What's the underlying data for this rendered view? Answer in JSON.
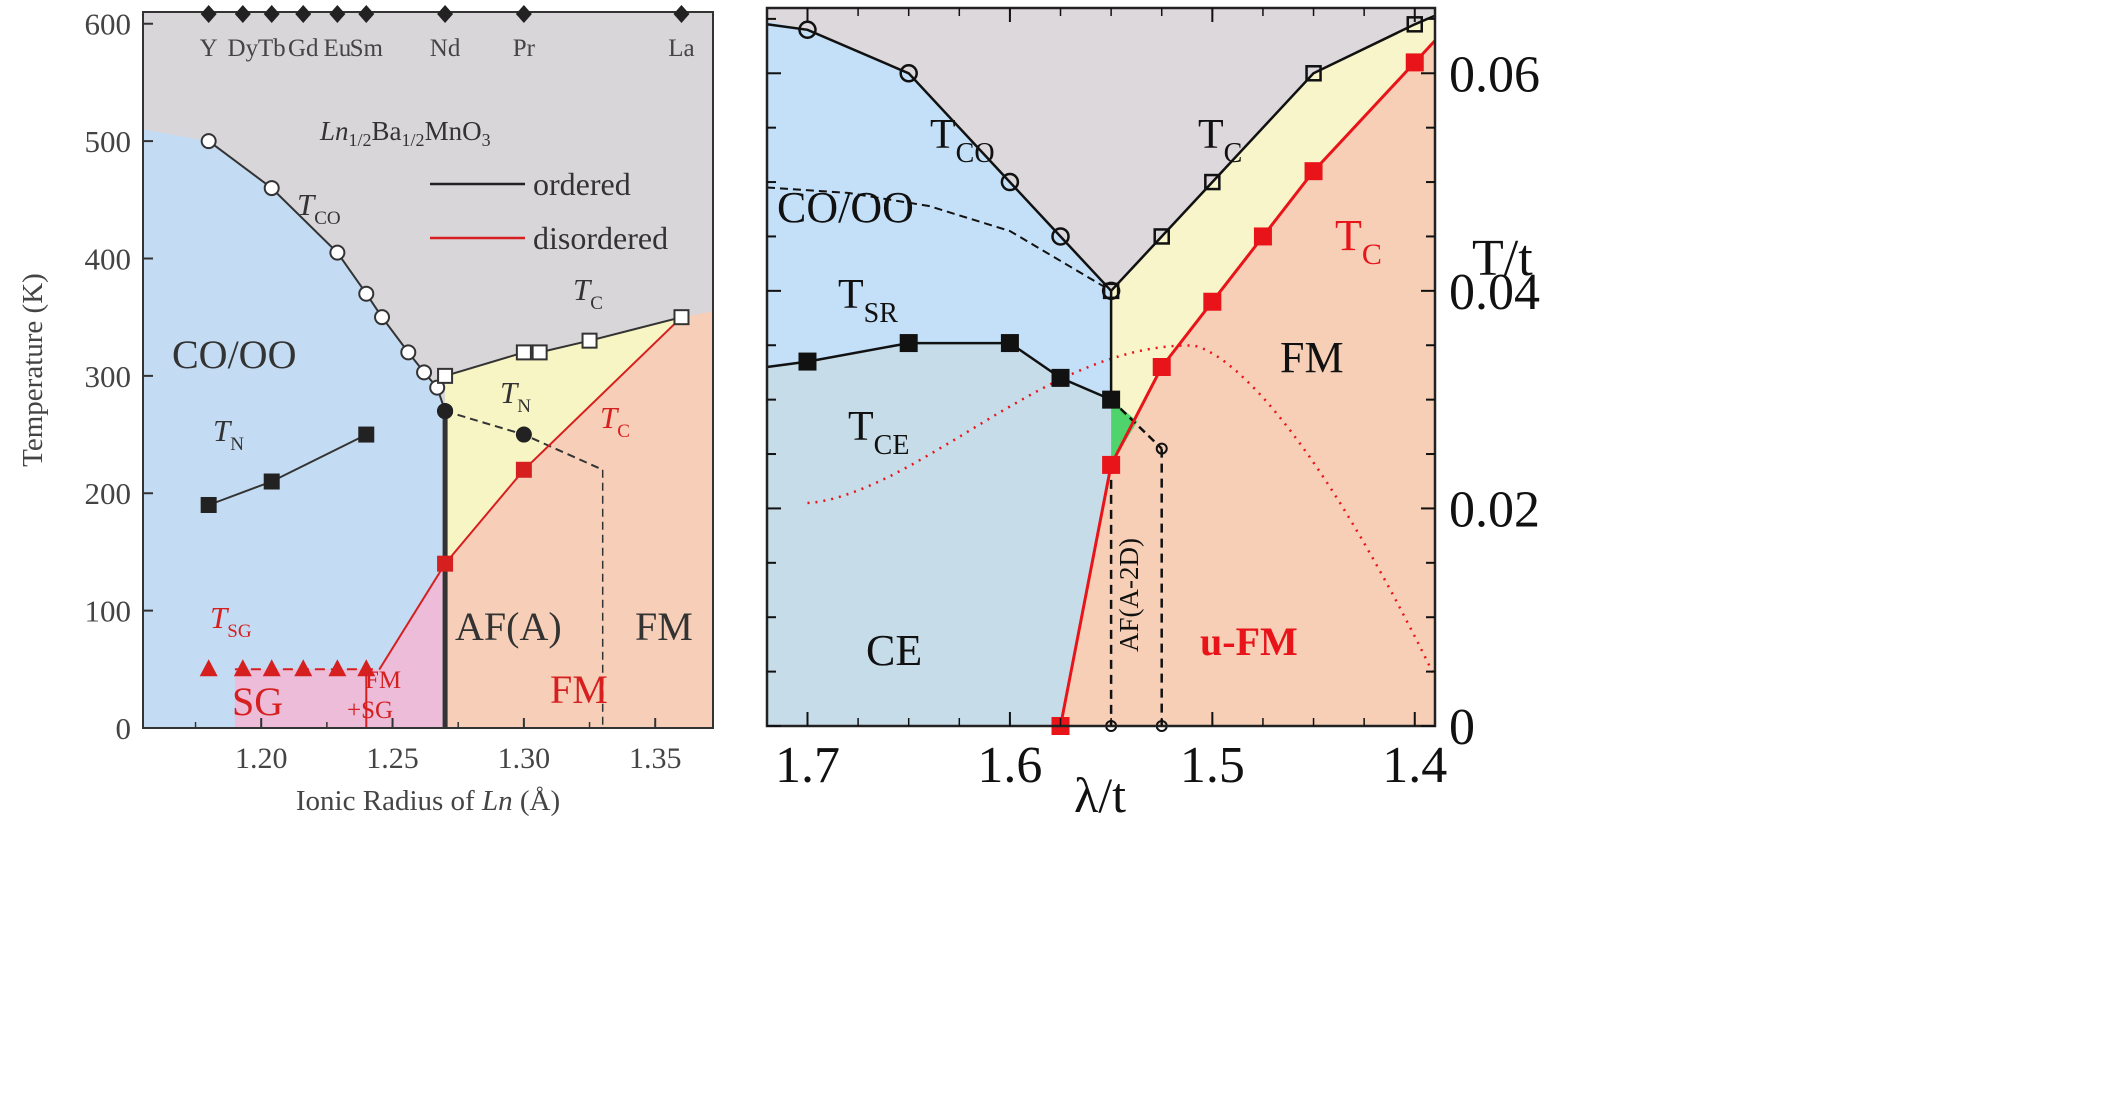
{
  "chart_data": [
    {
      "type": "phase-diagram",
      "title": "",
      "compound": {
        "base": "Ln",
        "sub1": "1/2",
        "mid": "Ba",
        "sub2": "1/2",
        "tail": "MnO",
        "sub3": "3"
      },
      "xlabel": {
        "text": "Ionic Radius of ",
        "italic": "Ln",
        "unit": " (Å)"
      },
      "ylabel": "Temperature (K)",
      "xlim": [
        1.155,
        1.372
      ],
      "ylim": [
        0,
        610
      ],
      "xticks": [
        1.2,
        1.25,
        1.3,
        1.35
      ],
      "xtick_labels": [
        "1.20",
        "1.25",
        "1.30",
        "1.35"
      ],
      "yticks": [
        0,
        100,
        200,
        300,
        400,
        500,
        600
      ],
      "ytick_labels": [
        "0",
        "100",
        "200",
        "300",
        "400",
        "500",
        "600"
      ],
      "elements": [
        {
          "symbol": "Y",
          "r": 1.18
        },
        {
          "symbol": "Dy",
          "r": 1.193
        },
        {
          "symbol": "Tb",
          "r": 1.204
        },
        {
          "symbol": "Gd",
          "r": 1.216
        },
        {
          "symbol": "Eu",
          "r": 1.229
        },
        {
          "symbol": "Sm",
          "r": 1.24
        },
        {
          "symbol": "Nd",
          "r": 1.27
        },
        {
          "symbol": "Pr",
          "r": 1.3
        },
        {
          "symbol": "La",
          "r": 1.36
        }
      ],
      "legend": {
        "position": "upper-right",
        "entries": [
          {
            "label": "ordered",
            "color": "#222222"
          },
          {
            "label": "disordered",
            "color": "#d62020"
          }
        ]
      },
      "series": [
        {
          "name": "T_CO",
          "marker": "open-circle",
          "points": [
            [
              1.18,
              500
            ],
            [
              1.204,
              460
            ],
            [
              1.229,
              405
            ],
            [
              1.24,
              370
            ],
            [
              1.246,
              350
            ],
            [
              1.256,
              320
            ],
            [
              1.262,
              303
            ],
            [
              1.267,
              290
            ],
            [
              1.27,
              270
            ]
          ]
        },
        {
          "name": "T_C (ordered)",
          "marker": "open-square",
          "points": [
            [
              1.27,
              300
            ],
            [
              1.3,
              320
            ],
            [
              1.306,
              320
            ],
            [
              1.325,
              330
            ],
            [
              1.36,
              350
            ]
          ]
        },
        {
          "name": "T_N (AF(A))",
          "marker": "filled-circle",
          "points": [
            [
              1.27,
              270
            ],
            [
              1.3,
              250
            ]
          ]
        },
        {
          "name": "T_N (low r)",
          "marker": "filled-square",
          "points": [
            [
              1.18,
              190
            ],
            [
              1.204,
              210
            ],
            [
              1.24,
              250
            ]
          ]
        },
        {
          "name": "T_C (disordered)",
          "marker": "red-square",
          "points": [
            [
              1.27,
              140
            ],
            [
              1.3,
              220
            ]
          ]
        },
        {
          "name": "T_SG",
          "marker": "red-triangle",
          "points": [
            [
              1.18,
              50
            ],
            [
              1.193,
              50
            ],
            [
              1.204,
              50
            ],
            [
              1.216,
              50
            ],
            [
              1.229,
              50
            ],
            [
              1.24,
              50
            ]
          ]
        }
      ],
      "region_labels": [
        "CO/OO",
        "AF(A)",
        "FM",
        "FM",
        "SG",
        "FM",
        "+SG"
      ],
      "line_labels": [
        {
          "main": "T",
          "sub": "CO"
        },
        {
          "main": "T",
          "sub": "C"
        },
        {
          "main": "T",
          "sub": "N"
        },
        {
          "main": "T",
          "sub": "N"
        },
        {
          "main": "T",
          "sub": "C"
        },
        {
          "main": "T",
          "sub": "SG"
        }
      ],
      "colors": {
        "grey": "#d9d6da",
        "blue": "#c3dcf3",
        "yellow": "#f7f5c4",
        "orange": "#f7cfb8",
        "pink": "#ecbcd8",
        "red": "#d62020"
      }
    },
    {
      "type": "phase-diagram",
      "title": "",
      "xlabel": "λ/t",
      "ylabel": "T/t",
      "xlim": [
        1.72,
        1.39
      ],
      "ylim": [
        0,
        0.066
      ],
      "x_reversed": true,
      "xticks": [
        1.7,
        1.6,
        1.5,
        1.4
      ],
      "xtick_labels": [
        "1.7",
        "1.6",
        "1.5",
        "1.4"
      ],
      "yticks": [
        0,
        0.02,
        0.04,
        0.06
      ],
      "ytick_labels": [
        "0",
        "0.02",
        "0.04",
        "0.06"
      ],
      "series": [
        {
          "name": "T_CO",
          "marker": "open-circle",
          "points": [
            [
              1.7,
              0.064
            ],
            [
              1.65,
              0.06
            ],
            [
              1.6,
              0.05
            ],
            [
              1.575,
              0.045
            ],
            [
              1.55,
              0.04
            ]
          ]
        },
        {
          "name": "T_C (upper)",
          "marker": "open-square",
          "points": [
            [
              1.55,
              0.04
            ],
            [
              1.525,
              0.045
            ],
            [
              1.5,
              0.05
            ],
            [
              1.45,
              0.06
            ],
            [
              1.4,
              0.0645
            ]
          ]
        },
        {
          "name": "T_CE",
          "marker": "filled-square",
          "points": [
            [
              1.7,
              0.0335
            ],
            [
              1.65,
              0.0352
            ],
            [
              1.6,
              0.0352
            ],
            [
              1.575,
              0.032
            ],
            [
              1.55,
              0.03
            ]
          ]
        },
        {
          "name": "T_C (red)",
          "marker": "red-square",
          "points": [
            [
              1.575,
              0.0
            ],
            [
              1.55,
              0.024
            ],
            [
              1.525,
              0.033
            ],
            [
              1.5,
              0.039
            ],
            [
              1.475,
              0.045
            ],
            [
              1.45,
              0.051
            ],
            [
              1.4,
              0.061
            ]
          ]
        },
        {
          "name": "T_SR",
          "style": "dashed",
          "points": [
            [
              1.72,
              0.05
            ],
            [
              1.65,
              0.048
            ],
            [
              1.6,
              0.045
            ],
            [
              1.55,
              0.04
            ]
          ]
        },
        {
          "name": "AF(A-2D) boundary",
          "marker": "small-circle",
          "points": [
            [
              1.55,
              0.03
            ],
            [
              1.525,
              0.0255
            ]
          ]
        }
      ],
      "region_labels": [
        "CO/OO",
        "FM",
        "CE",
        "u-FM",
        "AF(A-2D)"
      ],
      "line_labels": [
        {
          "main": "T",
          "sub": "CO"
        },
        {
          "main": "T",
          "sub": "C"
        },
        {
          "main": "T",
          "sub": "SR"
        },
        {
          "main": "T",
          "sub": "CE"
        },
        {
          "main": "T",
          "sub": "C"
        }
      ],
      "colors": {
        "grey": "#dcd8dc",
        "blue": "#c4e0f8",
        "teal": "#c6dde9",
        "yellow": "#f7f5c9",
        "orange": "#f6cfb6",
        "green": "#4fd36b",
        "red": "#e8141a"
      }
    }
  ]
}
